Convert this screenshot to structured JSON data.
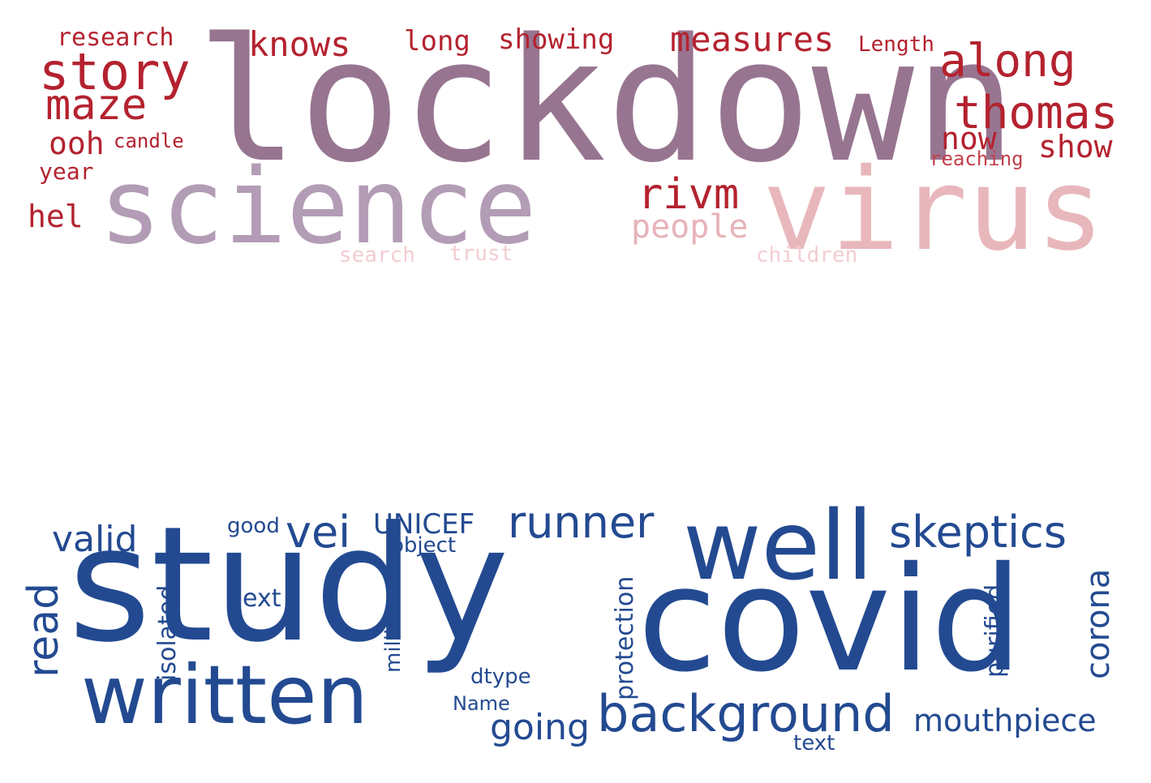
{
  "clouds": {
    "top": {
      "words": [
        {
          "text": "lockdown",
          "color": "#977590"
        },
        {
          "text": "science",
          "color": "#b39cb5"
        },
        {
          "text": "virus",
          "color": "#e8b7bc"
        },
        {
          "text": "story",
          "color": "#b4222f"
        },
        {
          "text": "maze",
          "color": "#b4222f"
        },
        {
          "text": "research",
          "color": "#b4222f"
        },
        {
          "text": "knows",
          "color": "#b4222f"
        },
        {
          "text": "long",
          "color": "#b4222f"
        },
        {
          "text": "showing",
          "color": "#b4222f"
        },
        {
          "text": "measures",
          "color": "#b4222f"
        },
        {
          "text": "Length",
          "color": "#b4222f"
        },
        {
          "text": "along",
          "color": "#b4222f"
        },
        {
          "text": "thomas",
          "color": "#b4222f"
        },
        {
          "text": "now",
          "color": "#b4222f"
        },
        {
          "text": "show",
          "color": "#b4222f"
        },
        {
          "text": "reaching",
          "color": "#c33f4b"
        },
        {
          "text": "ooh",
          "color": "#b4222f"
        },
        {
          "text": "candle",
          "color": "#b4222f"
        },
        {
          "text": "year",
          "color": "#b4222f"
        },
        {
          "text": "hel",
          "color": "#b4222f"
        },
        {
          "text": "rivm",
          "color": "#b4222f"
        },
        {
          "text": "people",
          "color": "#e6b3b9"
        },
        {
          "text": "search",
          "color": "#f2cdd1"
        },
        {
          "text": "trust",
          "color": "#f2cdd1"
        },
        {
          "text": "children",
          "color": "#f2cdd1"
        }
      ]
    },
    "bottom": {
      "words": [
        {
          "text": "study",
          "color": "#234a91"
        },
        {
          "text": "covid",
          "color": "#234a91"
        },
        {
          "text": "well",
          "color": "#234a91"
        },
        {
          "text": "written",
          "color": "#234a91"
        },
        {
          "text": "background",
          "color": "#234a91"
        },
        {
          "text": "skeptics",
          "color": "#234a91"
        },
        {
          "text": "runner",
          "color": "#234a91"
        },
        {
          "text": "valid",
          "color": "#234a91"
        },
        {
          "text": "vei",
          "color": "#234a91"
        },
        {
          "text": "good",
          "color": "#234a91"
        },
        {
          "text": "UNICEF",
          "color": "#234a91"
        },
        {
          "text": "object",
          "color": "#234a91"
        },
        {
          "text": "read",
          "color": "#234a91"
        },
        {
          "text": "isolated",
          "color": "#234a91"
        },
        {
          "text": "next",
          "color": "#234a91"
        },
        {
          "text": "million",
          "color": "#234a91"
        },
        {
          "text": "protection",
          "color": "#234a91"
        },
        {
          "text": "purified",
          "color": "#234a91"
        },
        {
          "text": "corona",
          "color": "#234a91"
        },
        {
          "text": "dtype",
          "color": "#234a91"
        },
        {
          "text": "Name",
          "color": "#234a91"
        },
        {
          "text": "going",
          "color": "#234a91"
        },
        {
          "text": "mouthpiece",
          "color": "#234a91"
        },
        {
          "text": "text",
          "color": "#234a91"
        }
      ]
    }
  }
}
